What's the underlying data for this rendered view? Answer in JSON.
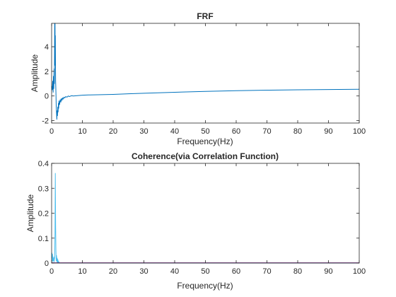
{
  "chart_data": [
    {
      "type": "line",
      "title": "FRF",
      "xlabel": "Frequency(Hz)",
      "ylabel": "Amplitude",
      "xlim": [
        0,
        100
      ],
      "ylim": [
        -2.2,
        5.9
      ],
      "xticks": [
        0,
        10,
        20,
        30,
        40,
        50,
        60,
        70,
        80,
        90,
        100
      ],
      "yticks": [
        -2,
        0,
        2,
        4
      ],
      "grid": false,
      "color": "#0072BD",
      "series": [
        {
          "x": [
            0,
            0.2,
            0.35,
            0.5,
            0.6,
            0.7,
            0.8,
            0.9,
            1.0,
            1.05,
            1.1,
            1.15,
            1.2,
            1.25,
            1.3,
            1.4,
            1.5,
            1.6,
            1.7,
            1.8,
            1.9,
            2.0,
            2.1,
            2.2,
            2.3,
            2.4,
            2.6,
            2.8,
            3.0,
            3.2,
            3.4,
            3.6,
            3.8,
            4.0,
            4.3,
            4.6,
            5.0,
            5.4,
            5.8,
            6.2,
            6.6,
            7.0,
            8,
            9,
            10,
            12,
            15,
            20,
            25,
            30,
            40,
            50,
            60,
            70,
            80,
            90,
            100
          ],
          "y": [
            0.8,
            0.5,
            1.2,
            0.3,
            1.6,
            0.6,
            2.2,
            1.0,
            5.9,
            2.5,
            5.9,
            3.5,
            4.9,
            2.6,
            1.2,
            0.3,
            -0.9,
            -1.4,
            -1.9,
            -1.2,
            -1.6,
            -0.9,
            -1.3,
            -0.6,
            -1.0,
            -0.4,
            -0.7,
            -0.3,
            -0.5,
            -0.2,
            -0.35,
            -0.15,
            -0.25,
            -0.1,
            -0.15,
            -0.05,
            -0.1,
            0.0,
            -0.05,
            0.0,
            0.02,
            0.0,
            0.02,
            0.04,
            0.06,
            0.08,
            0.1,
            0.13,
            0.18,
            0.22,
            0.3,
            0.37,
            0.43,
            0.47,
            0.5,
            0.52,
            0.54
          ]
        }
      ]
    },
    {
      "type": "line",
      "title": "Coherence(via Correlation Function)",
      "xlabel": "Frequency(Hz)",
      "ylabel": "Amplitude",
      "xlim": [
        0,
        100
      ],
      "ylim": [
        0,
        0.4
      ],
      "xticks": [
        0,
        10,
        20,
        30,
        40,
        50,
        60,
        70,
        80,
        90,
        100
      ],
      "yticks": [
        0,
        0.1,
        0.2,
        0.3,
        0.4
      ],
      "grid": false,
      "series": [
        {
          "color": "#4DBEEE",
          "x": [
            0,
            0.1,
            0.2,
            0.3,
            0.4,
            0.5,
            0.6,
            0.7,
            0.8,
            0.9,
            1.0,
            1.1,
            1.2,
            1.3,
            1.4,
            1.5,
            1.6,
            1.7,
            1.8,
            1.9,
            2.0,
            2.1,
            2.2,
            2.3,
            2.4,
            2.5,
            2.7,
            3.0,
            100
          ],
          "y": [
            0.02,
            0.04,
            0.01,
            0.035,
            0.005,
            0.02,
            0.01,
            0.025,
            0.005,
            0.015,
            0.02,
            0.12,
            0.36,
            0.15,
            0.05,
            0.01,
            0.03,
            0.005,
            0.02,
            0.0,
            0.015,
            0.0,
            0.008,
            0.0,
            0.004,
            0.0,
            0.0,
            0.0,
            0.0
          ]
        },
        {
          "color": "#7E2F8E",
          "x": [
            0,
            100
          ],
          "y": [
            0.001,
            0.001
          ]
        }
      ]
    }
  ]
}
